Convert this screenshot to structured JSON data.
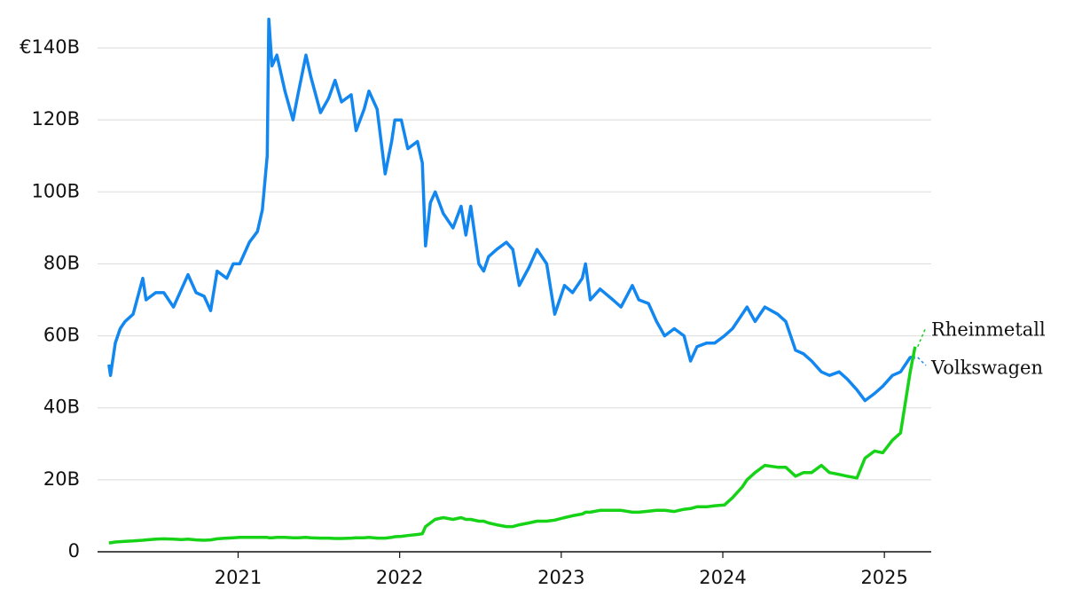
{
  "chart_data": {
    "type": "line",
    "x": [
      2020.2,
      2020.21,
      2020.24,
      2020.27,
      2020.3,
      2020.35,
      2020.41,
      2020.43,
      2020.49,
      2020.54,
      2020.6,
      2020.65,
      2020.69,
      2020.74,
      2020.79,
      2020.83,
      2020.87,
      2020.93,
      2020.97,
      2021.01,
      2021.07,
      2021.12,
      2021.15,
      2021.18,
      2021.19,
      2021.21,
      2021.24,
      2021.29,
      2021.34,
      2021.37,
      2021.42,
      2021.45,
      2021.51,
      2021.56,
      2021.6,
      2021.64,
      2021.7,
      2021.73,
      2021.78,
      2021.81,
      2021.86,
      2021.91,
      2021.95,
      2021.97,
      2022.01,
      2022.05,
      2022.11,
      2022.14,
      2022.16,
      2022.19,
      2022.22,
      2022.27,
      2022.33,
      2022.38,
      2022.41,
      2022.44,
      2022.49,
      2022.52,
      2022.55,
      2022.6,
      2022.66,
      2022.7,
      2022.74,
      2022.8,
      2022.85,
      2022.91,
      2022.96,
      2023.02,
      2023.07,
      2023.13,
      2023.15,
      2023.18,
      2023.24,
      2023.32,
      2023.37,
      2023.44,
      2023.48,
      2023.54,
      2023.59,
      2023.64,
      2023.7,
      2023.76,
      2023.8,
      2023.84,
      2023.9,
      2023.95,
      2024.01,
      2024.06,
      2024.12,
      2024.15,
      2024.2,
      2024.26,
      2024.34,
      2024.39,
      2024.45,
      2024.5,
      2024.55,
      2024.61,
      2024.66,
      2024.72,
      2024.77,
      2024.83,
      2024.88,
      2024.94,
      2024.99,
      2025.05,
      2025.1,
      2025.16,
      2025.19
    ],
    "series": [
      {
        "name": "Volkswagen",
        "color": "#1387f0",
        "values": [
          52,
          49,
          58,
          62,
          64,
          66,
          76,
          70,
          72,
          72,
          68,
          73,
          77,
          72,
          71,
          67,
          78,
          76,
          80,
          80,
          86,
          89,
          95,
          110,
          148,
          135,
          138,
          128,
          120,
          127,
          138,
          132,
          122,
          126,
          131,
          125,
          127,
          117,
          123,
          128,
          123,
          105,
          114,
          120,
          120,
          112,
          114,
          108,
          85,
          97,
          100,
          94,
          90,
          96,
          88,
          96,
          80,
          78,
          82,
          84,
          86,
          84,
          74,
          79,
          84,
          80,
          66,
          74,
          72,
          76,
          80,
          70,
          73,
          70,
          68,
          74,
          70,
          69,
          64,
          60,
          62,
          60,
          53,
          57,
          58,
          58,
          60,
          62,
          66,
          68,
          64,
          68,
          66,
          64,
          56,
          55,
          53,
          50,
          49,
          50,
          48,
          45,
          42,
          44,
          46,
          49,
          50,
          54,
          54
        ]
      },
      {
        "name": "Rheinmetall",
        "color": "#17d317",
        "values": [
          2.5,
          2.5,
          2.7,
          2.8,
          2.9,
          3,
          3.2,
          3.3,
          3.5,
          3.6,
          3.5,
          3.4,
          3.5,
          3.3,
          3.2,
          3.3,
          3.6,
          3.8,
          3.9,
          4,
          4,
          4,
          4,
          4,
          3.9,
          3.9,
          4,
          4,
          3.9,
          3.9,
          4,
          3.9,
          3.8,
          3.8,
          3.7,
          3.7,
          3.8,
          3.9,
          3.9,
          4,
          3.8,
          3.8,
          4,
          4.2,
          4.3,
          4.5,
          4.8,
          5,
          7,
          8,
          9,
          9.5,
          9,
          9.5,
          9,
          9,
          8.5,
          8.5,
          8,
          7.5,
          7,
          7,
          7.5,
          8,
          8.5,
          8.5,
          8.8,
          9.5,
          10,
          10.5,
          11,
          11,
          11.5,
          11.5,
          11.5,
          11,
          11,
          11.3,
          11.5,
          11.5,
          11.2,
          11.8,
          12,
          12.5,
          12.5,
          12.8,
          13,
          15,
          18,
          20,
          22,
          24,
          23.5,
          23.5,
          21,
          22,
          22,
          24,
          22,
          21.5,
          21,
          20.5,
          26,
          28,
          27.5,
          31,
          33,
          50,
          57
        ]
      }
    ],
    "xlim": [
      2020.13,
      2025.29
    ],
    "xticks": [
      2021,
      2022,
      2023,
      2024,
      2025
    ],
    "ylim": [
      0,
      150
    ],
    "yticks": [
      0,
      {
        "value": 20,
        "label": "20B"
      },
      {
        "value": 40,
        "label": "40B"
      },
      {
        "value": 60,
        "label": "60B"
      },
      {
        "value": 80,
        "label": "80B"
      },
      {
        "value": 100,
        "label": "100B"
      },
      {
        "value": 120,
        "label": "120B"
      },
      {
        "value": 140,
        "label": "€140B"
      }
    ],
    "grid": true
  }
}
